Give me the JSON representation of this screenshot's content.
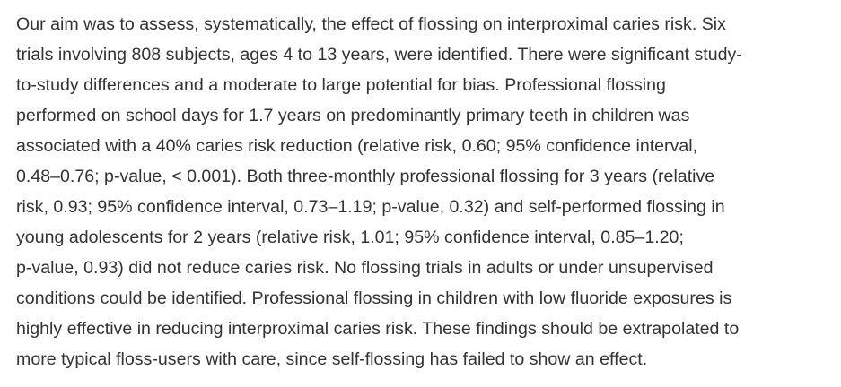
{
  "abstract": {
    "lines": [
      "Our aim was to assess, systematically, the effect of flossing on interproximal caries risk. Six",
      "trials involving 808 subjects, ages 4 to 13 years, were identified. There were significant study-",
      "to-study differences and a moderate to large potential for bias. Professional flossing",
      "performed on school days for 1.7 years on predominantly primary teeth in children was",
      "associated with a 40% caries risk reduction (relative risk, 0.60; 95% confidence interval,",
      "0.48–0.76; p-value, < 0.001). Both three-monthly professional flossing for 3 years (relative",
      "risk, 0.93; 95% confidence interval, 0.73–1.19; p-value, 0.32) and self-performed flossing in",
      "young adolescents for 2 years (relative risk, 1.01; 95% confidence interval, 0.85–1.20;",
      "p-value, 0.93) did not reduce caries risk. No flossing trials in adults or under unsupervised",
      "conditions could be identified. Professional flossing in children with low fluoride exposures is",
      "highly effective in reducing interproximal caries risk. These findings should be extrapolated to",
      "more typical floss-users with care, since self-flossing has failed to show an effect."
    ]
  }
}
